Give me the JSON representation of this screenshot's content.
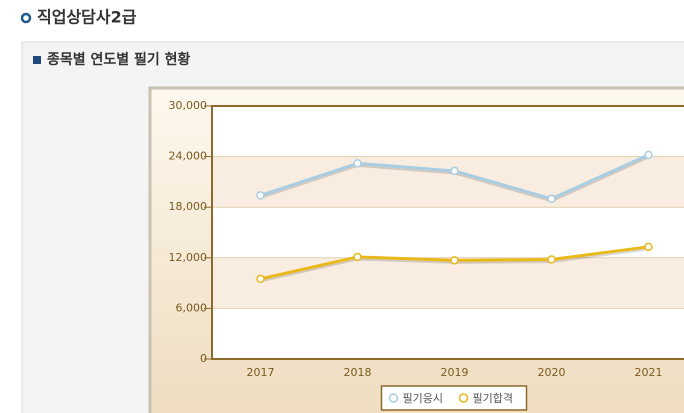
{
  "header": {
    "title": "직업상담사2급"
  },
  "section": {
    "title": "종목별 연도별 필기 현황"
  },
  "chart_data": {
    "type": "line",
    "categories": [
      "2017",
      "2018",
      "2019",
      "2020",
      "2021"
    ],
    "series": [
      {
        "name": "필기응시",
        "color": "#a9cde3",
        "values": [
          19400,
          23200,
          22300,
          19000,
          24200
        ]
      },
      {
        "name": "필기합격",
        "color": "#e9b91c",
        "values": [
          9500,
          12100,
          11700,
          11800,
          13300
        ]
      }
    ],
    "ylim": [
      0,
      30000
    ],
    "yticks": [
      0,
      {
        "value": 6000,
        "label": "6,000"
      },
      {
        "value": 12000,
        "label": "12,000"
      },
      {
        "value": 18000,
        "label": "18,000"
      },
      {
        "value": 24000,
        "label": "24,000"
      },
      {
        "value": 30000,
        "label": "30,000"
      }
    ],
    "grid": true,
    "legend": "bottom"
  }
}
